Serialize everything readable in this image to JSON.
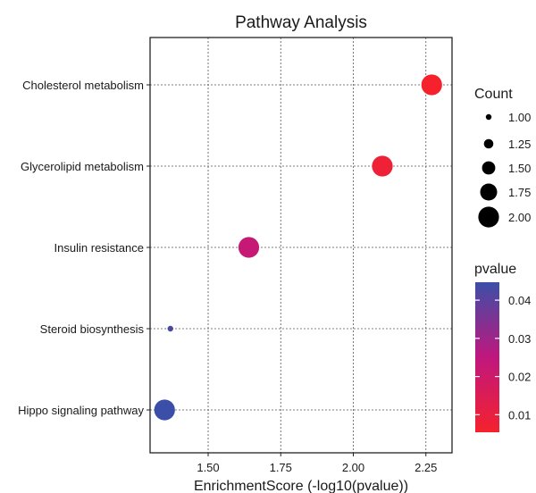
{
  "chart_data": {
    "type": "scatter",
    "title": "Pathway Analysis",
    "xlabel": "EnrichmentScore (-log10(pvalue))",
    "ylabel": "",
    "xlim": [
      1.3,
      2.34
    ],
    "x_ticks": [
      1.5,
      1.75,
      2.0,
      2.25
    ],
    "x_tick_labels": [
      "1.50",
      "1.75",
      "2.00",
      "2.25"
    ],
    "grid": true,
    "categories": [
      "Cholesterol metabolism",
      "Glycerolipid metabolism",
      "Insulin resistance",
      "Steroid biosynthesis",
      "Hippo signaling pathway"
    ],
    "points": [
      {
        "category": "Cholesterol metabolism",
        "x": 2.27,
        "count": 2,
        "pvalue": 0.0054
      },
      {
        "category": "Glycerolipid metabolism",
        "x": 2.1,
        "count": 2,
        "pvalue": 0.0079
      },
      {
        "category": "Insulin resistance",
        "x": 1.64,
        "count": 2,
        "pvalue": 0.0229
      },
      {
        "category": "Steroid biosynthesis",
        "x": 1.37,
        "count": 1,
        "pvalue": 0.0427
      },
      {
        "category": "Hippo signaling pathway",
        "x": 1.35,
        "count": 2,
        "pvalue": 0.0447
      }
    ],
    "size_legend": {
      "title": "Count",
      "values": [
        1.0,
        1.25,
        1.5,
        1.75,
        2.0
      ],
      "labels": [
        "1.00",
        "1.25",
        "1.50",
        "1.75",
        "2.00"
      ]
    },
    "color_legend": {
      "title": "pvalue",
      "min": 0.0054,
      "max": 0.0447,
      "ticks": [
        0.01,
        0.02,
        0.03,
        0.04
      ],
      "tick_labels": [
        "0.01",
        "0.02",
        "0.03",
        "0.04"
      ],
      "low_color": "#f5222d",
      "mid_color": "#c0177e",
      "high_color": "#3b4fa8"
    },
    "legend_placement": "right"
  }
}
